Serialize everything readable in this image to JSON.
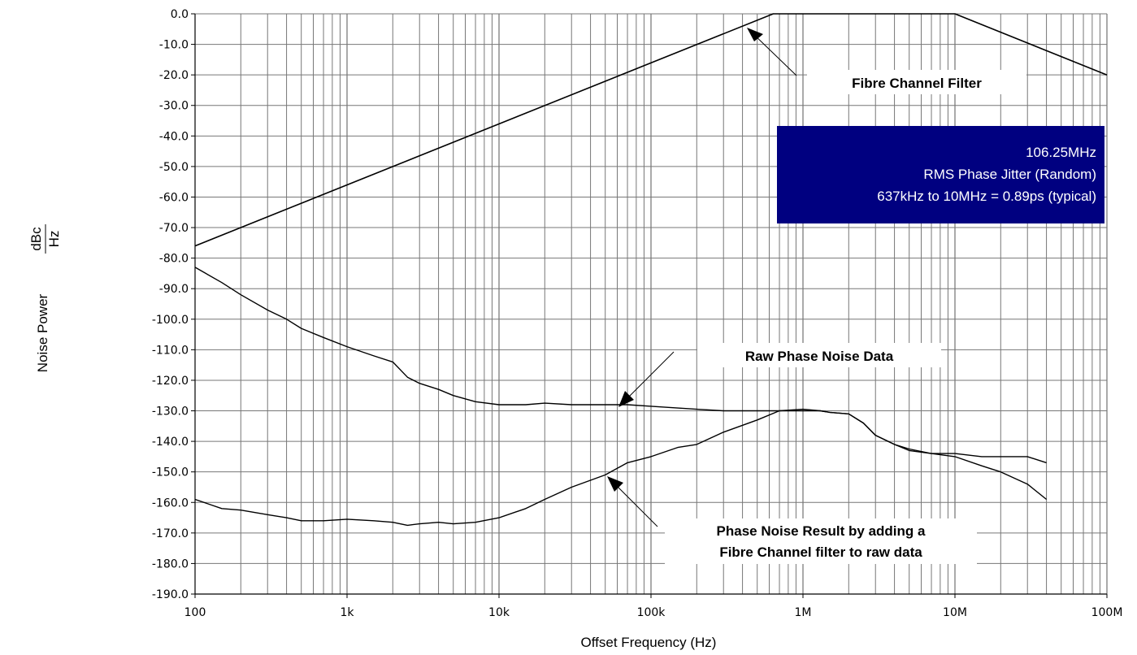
{
  "chart_data": {
    "type": "line",
    "x_scale": "log",
    "xlim": [
      100,
      100000000
    ],
    "ylim": [
      -190,
      0
    ],
    "xlabel": "Offset Frequency (Hz)",
    "ylabel_prefix": "Noise Power",
    "ylabel_unit_num": "dBc",
    "ylabel_unit_den": "Hz",
    "grid": true,
    "x_ticks": [
      {
        "value": 100,
        "label": "100"
      },
      {
        "value": 1000,
        "label": "1k"
      },
      {
        "value": 10000,
        "label": "10k"
      },
      {
        "value": 100000,
        "label": "100k"
      },
      {
        "value": 1000000,
        "label": "1M"
      },
      {
        "value": 10000000,
        "label": "10M"
      },
      {
        "value": 100000000,
        "label": "100M"
      }
    ],
    "y_ticks": [
      {
        "value": 0,
        "label": "0.0"
      },
      {
        "value": -10,
        "label": "-10.0"
      },
      {
        "value": -20,
        "label": "-20.0"
      },
      {
        "value": -30,
        "label": "-30.0"
      },
      {
        "value": -40,
        "label": "-40.0"
      },
      {
        "value": -50,
        "label": "-50.0"
      },
      {
        "value": -60,
        "label": "-60.0"
      },
      {
        "value": -70,
        "label": "-70.0"
      },
      {
        "value": -80,
        "label": "-80.0"
      },
      {
        "value": -90,
        "label": "-90.0"
      },
      {
        "value": -100,
        "label": "-100.0"
      },
      {
        "value": -110,
        "label": "-110.0"
      },
      {
        "value": -120,
        "label": "-120.0"
      },
      {
        "value": -130,
        "label": "-130.0"
      },
      {
        "value": -140,
        "label": "-140.0"
      },
      {
        "value": -150,
        "label": "-150.0"
      },
      {
        "value": -160,
        "label": "-160.0"
      },
      {
        "value": -170,
        "label": "-170.0"
      },
      {
        "value": -180,
        "label": "-180.0"
      },
      {
        "value": -190,
        "label": "-190.0"
      }
    ],
    "series": [
      {
        "key": "filter",
        "x": [
          100,
          637000,
          10000000,
          100000000
        ],
        "y": [
          -76,
          0,
          0,
          -20
        ]
      },
      {
        "key": "raw",
        "x": [
          100,
          150,
          200,
          300,
          400,
          500,
          700,
          1000,
          1500,
          2000,
          2500,
          3000,
          4000,
          5000,
          7000,
          10000,
          15000,
          20000,
          30000,
          50000,
          70000,
          100000,
          200000,
          300000,
          500000,
          700000,
          1000000,
          1300000,
          1500000,
          2000000,
          2500000,
          3000000,
          4000000,
          5000000,
          7000000,
          10000000,
          15000000,
          20000000,
          30000000,
          40000000
        ],
        "y": [
          -83,
          -88,
          -92,
          -97,
          -100,
          -103,
          -106,
          -109,
          -112,
          -114,
          -119,
          -121,
          -123,
          -125,
          -127,
          -128,
          -128,
          -127.5,
          -128,
          -128,
          -128,
          -128.5,
          -129.5,
          -130,
          -130,
          -130,
          -130,
          -130,
          -130.5,
          -131,
          -134,
          -138,
          -141,
          -143,
          -144,
          -144,
          -145,
          -145,
          -145,
          -147
        ]
      },
      {
        "key": "result",
        "x": [
          100,
          150,
          200,
          300,
          400,
          500,
          700,
          1000,
          1500,
          2000,
          2500,
          3000,
          4000,
          5000,
          7000,
          10000,
          15000,
          20000,
          30000,
          50000,
          70000,
          100000,
          150000,
          200000,
          300000,
          500000,
          700000,
          1000000,
          1300000,
          1500000,
          2000000,
          2500000,
          3000000,
          4000000,
          5000000,
          7000000,
          10000000,
          15000000,
          20000000,
          30000000,
          40000000
        ],
        "y": [
          -159,
          -162,
          -162.5,
          -164,
          -165,
          -166,
          -166,
          -165.5,
          -166,
          -166.5,
          -167.5,
          -167,
          -166.5,
          -167,
          -166.5,
          -165,
          -162,
          -159,
          -155,
          -151,
          -147,
          -145,
          -142,
          -141,
          -137,
          -133,
          -130,
          -129.5,
          -130,
          -130.5,
          -131,
          -134,
          -138,
          -141,
          -142.5,
          -144,
          -145,
          -148,
          -150,
          -154,
          -159
        ]
      }
    ],
    "annotations": {
      "filter": {
        "text": "Fibre Channel Filter"
      },
      "raw": {
        "text": "Raw Phase Noise Data"
      },
      "result": {
        "line1": "Phase Noise Result by adding a",
        "line2": "Fibre Channel filter to raw data"
      }
    },
    "info_box": {
      "line1": "106.25MHz",
      "line2": "RMS Phase Jitter (Random)",
      "line3": "637kHz to 10MHz = 0.89ps (typical)",
      "background": "#000080",
      "text_color": "#ffffff"
    }
  }
}
